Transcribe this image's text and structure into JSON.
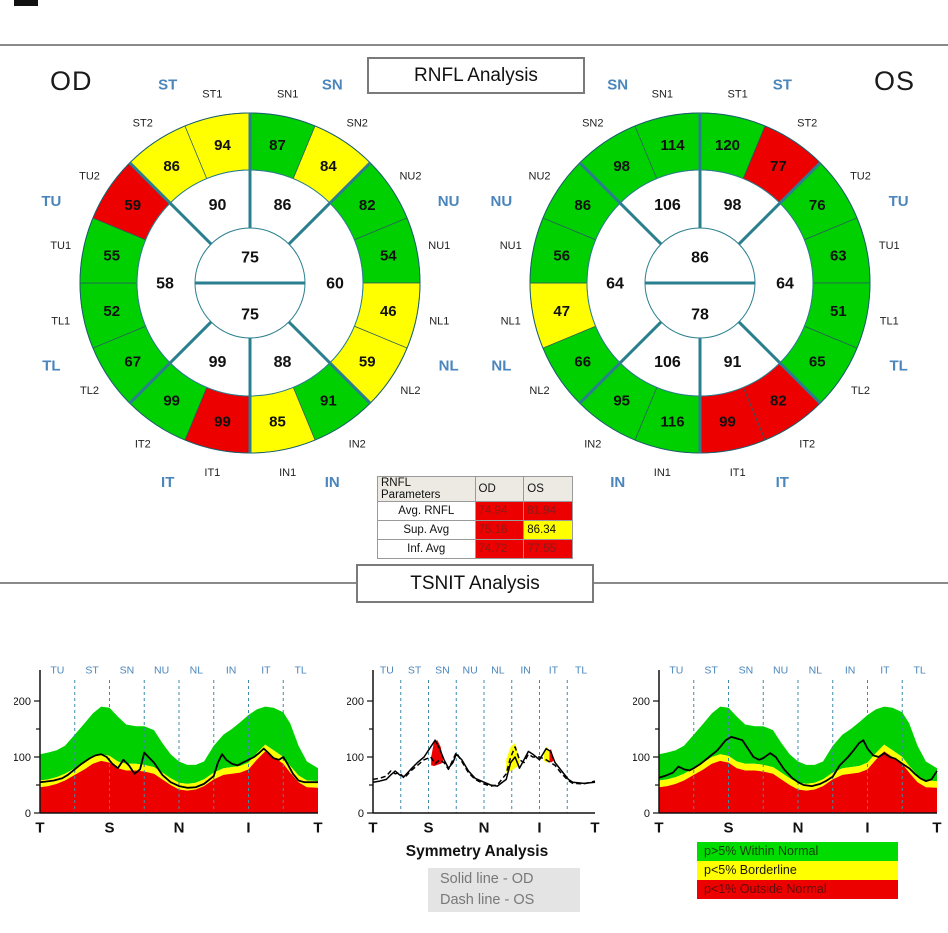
{
  "header": {
    "rnfl_title": "RNFL Analysis",
    "od_label": "OD",
    "os_label": "OS"
  },
  "tsnit_title": "TSNIT Analysis",
  "symmetry": {
    "heading": "Symmetry Analysis",
    "solid_label": "Solid line - OD",
    "dash_label": "Dash line - OS"
  },
  "legend": {
    "items": [
      {
        "label": "p>5% Within Normal",
        "bg": "#00DB00",
        "fg": "#143b05"
      },
      {
        "label": "p<5% Borderline",
        "bg": "#FFFF00",
        "fg": "#1a1a00"
      },
      {
        "label": "p<1% Outside Normal",
        "bg": "#EC0000",
        "fg": "#5f0c0c"
      }
    ]
  },
  "colors": {
    "g": "#00D000",
    "y": "#FFFF00",
    "r": "#EC0000",
    "teal": "#2A7F8E",
    "blue": "#4A86BC",
    "grid": "#3E8CA8",
    "axis": "#111111",
    "sublabel": "#222222"
  },
  "chart_data": {
    "sector_maps": [
      {
        "eye": "OD",
        "sectors": [
          [
            "SN1",
            87,
            "g"
          ],
          [
            "SN2",
            84,
            "y"
          ],
          [
            "NU2",
            82,
            "g"
          ],
          [
            "NU1",
            54,
            "g"
          ],
          [
            "NL1",
            46,
            "y"
          ],
          [
            "NL2",
            59,
            "y"
          ],
          [
            "IN2",
            91,
            "g"
          ],
          [
            "IN1",
            85,
            "y"
          ],
          [
            "IT1",
            99,
            "r"
          ],
          [
            "IT2",
            99,
            "g"
          ],
          [
            "TL2",
            67,
            "g"
          ],
          [
            "TL1",
            52,
            "g"
          ],
          [
            "TU1",
            55,
            "g"
          ],
          [
            "TU2",
            59,
            "r"
          ],
          [
            "ST2",
            86,
            "y"
          ],
          [
            "ST1",
            94,
            "y"
          ]
        ],
        "inner": [
          [
            90,
            337.5
          ],
          [
            86,
            22.5
          ],
          [
            60,
            90
          ],
          [
            88,
            157.5
          ],
          [
            99,
            202.5
          ],
          [
            58,
            270
          ]
        ],
        "center_top": 75,
        "center_bottom": 75,
        "octants": [
          [
            "SN",
            22.5
          ],
          [
            "NU",
            67.5
          ],
          [
            "NL",
            112.5
          ],
          [
            "IN",
            157.5
          ],
          [
            "IT",
            202.5
          ],
          [
            "TL",
            247.5
          ],
          [
            "TU",
            292.5
          ],
          [
            "ST",
            337.5
          ]
        ]
      },
      {
        "eye": "OS",
        "sectors": [
          [
            "ST1",
            120,
            "g"
          ],
          [
            "ST2",
            77,
            "r"
          ],
          [
            "TU2",
            76,
            "g"
          ],
          [
            "TU1",
            63,
            "g"
          ],
          [
            "TL1",
            51,
            "g"
          ],
          [
            "TL2",
            65,
            "g"
          ],
          [
            "IT2",
            82,
            "r"
          ],
          [
            "IT1",
            99,
            "r"
          ],
          [
            "IN1",
            116,
            "g"
          ],
          [
            "IN2",
            95,
            "g"
          ],
          [
            "NL2",
            66,
            "g"
          ],
          [
            "NL1",
            47,
            "y"
          ],
          [
            "NU1",
            56,
            "g"
          ],
          [
            "NU2",
            86,
            "g"
          ],
          [
            "SN2",
            98,
            "g"
          ],
          [
            "SN1",
            114,
            "g"
          ]
        ],
        "inner": [
          [
            106,
            337.5
          ],
          [
            98,
            22.5
          ],
          [
            64,
            90
          ],
          [
            91,
            157.5
          ],
          [
            106,
            202.5
          ],
          [
            64,
            270
          ]
        ],
        "center_top": 86,
        "center_bottom": 78,
        "octants": [
          [
            "ST",
            22.5
          ],
          [
            "TU",
            67.5
          ],
          [
            "TL",
            112.5
          ],
          [
            "IT",
            157.5
          ],
          [
            "IN",
            202.5
          ],
          [
            "NL",
            247.5
          ],
          [
            "NU",
            292.5
          ],
          [
            "SN",
            337.5
          ]
        ]
      }
    ],
    "parameters_table": {
      "headers": [
        "RNFL Parameters",
        "OD",
        "OS"
      ],
      "rows": [
        [
          "Avg. RNFL",
          "74.94",
          "81.94",
          "r",
          "r"
        ],
        [
          "Sup. Avg",
          "75.16",
          "86.34",
          "r",
          "y"
        ],
        [
          "Inf. Avg",
          "74.72",
          "77.55",
          "r",
          "r"
        ]
      ],
      "value_text": {
        "r": "#8B1A1A",
        "y": "#111111"
      }
    },
    "tsnit_plots": {
      "type": "area+line",
      "ylim": [
        0,
        250
      ],
      "yticks": [
        0,
        50,
        100,
        150,
        200
      ],
      "ytick_labels": [
        "0",
        "100",
        "200"
      ],
      "sections": [
        "TU",
        "ST",
        "SN",
        "NU",
        "NL",
        "IN",
        "IT",
        "TL"
      ],
      "xlabels": [
        "T",
        "S",
        "N",
        "I",
        "T"
      ],
      "bands": {
        "x": [
          0,
          0.03,
          0.06,
          0.09,
          0.125,
          0.16,
          0.19,
          0.22,
          0.25,
          0.28,
          0.31,
          0.345,
          0.375,
          0.41,
          0.44,
          0.47,
          0.5,
          0.53,
          0.56,
          0.59,
          0.625,
          0.66,
          0.69,
          0.72,
          0.75,
          0.78,
          0.81,
          0.84,
          0.875,
          0.9,
          0.93,
          0.96,
          1
        ],
        "red": [
          46,
          48,
          52,
          58,
          68,
          78,
          88,
          93,
          90,
          80,
          76,
          76,
          74,
          70,
          60,
          50,
          42,
          40,
          42,
          48,
          60,
          68,
          70,
          72,
          78,
          95,
          110,
          100,
          88,
          72,
          55,
          46,
          45
        ],
        "yellow": [
          58,
          60,
          64,
          70,
          80,
          90,
          100,
          105,
          102,
          92,
          88,
          88,
          86,
          82,
          72,
          62,
          54,
          52,
          54,
          60,
          72,
          80,
          82,
          84,
          90,
          107,
          122,
          112,
          100,
          84,
          67,
          58,
          57
        ],
        "green": [
          105,
          108,
          112,
          120,
          140,
          160,
          178,
          190,
          188,
          172,
          158,
          155,
          155,
          148,
          125,
          105,
          92,
          86,
          86,
          92,
          120,
          140,
          150,
          162,
          175,
          185,
          190,
          188,
          180,
          160,
          120,
          92,
          80
        ]
      },
      "od_line": [
        [
          0,
          55
        ],
        [
          0.02,
          56
        ],
        [
          0.05,
          58
        ],
        [
          0.08,
          62
        ],
        [
          0.1,
          68
        ],
        [
          0.125,
          78
        ],
        [
          0.15,
          88
        ],
        [
          0.18,
          98
        ],
        [
          0.2,
          103
        ],
        [
          0.22,
          105
        ],
        [
          0.24,
          100
        ],
        [
          0.26,
          88
        ],
        [
          0.28,
          80
        ],
        [
          0.3,
          95
        ],
        [
          0.32,
          85
        ],
        [
          0.34,
          70
        ],
        [
          0.36,
          78
        ],
        [
          0.375,
          108
        ],
        [
          0.39,
          100
        ],
        [
          0.41,
          90
        ],
        [
          0.44,
          68
        ],
        [
          0.47,
          55
        ],
        [
          0.5,
          48
        ],
        [
          0.53,
          45
        ],
        [
          0.56,
          46
        ],
        [
          0.59,
          52
        ],
        [
          0.61,
          60
        ],
        [
          0.625,
          66
        ],
        [
          0.64,
          90
        ],
        [
          0.655,
          105
        ],
        [
          0.67,
          95
        ],
        [
          0.69,
          88
        ],
        [
          0.71,
          85
        ],
        [
          0.73,
          90
        ],
        [
          0.75,
          95
        ],
        [
          0.77,
          100
        ],
        [
          0.79,
          108
        ],
        [
          0.805,
          115
        ],
        [
          0.82,
          108
        ],
        [
          0.84,
          98
        ],
        [
          0.86,
          95
        ],
        [
          0.875,
          100
        ],
        [
          0.89,
          88
        ],
        [
          0.91,
          70
        ],
        [
          0.93,
          58
        ],
        [
          0.95,
          55
        ],
        [
          1,
          55
        ]
      ],
      "os_line": [
        [
          0,
          63
        ],
        [
          0.02,
          66
        ],
        [
          0.05,
          72
        ],
        [
          0.07,
          83
        ],
        [
          0.09,
          78
        ],
        [
          0.11,
          76
        ],
        [
          0.125,
          80
        ],
        [
          0.15,
          88
        ],
        [
          0.18,
          100
        ],
        [
          0.21,
          112
        ],
        [
          0.24,
          130
        ],
        [
          0.26,
          136
        ],
        [
          0.28,
          133
        ],
        [
          0.3,
          130
        ],
        [
          0.32,
          115
        ],
        [
          0.34,
          100
        ],
        [
          0.36,
          95
        ],
        [
          0.375,
          98
        ],
        [
          0.4,
          107
        ],
        [
          0.42,
          100
        ],
        [
          0.45,
          78
        ],
        [
          0.48,
          62
        ],
        [
          0.5,
          55
        ],
        [
          0.52,
          50
        ],
        [
          0.55,
          48
        ],
        [
          0.58,
          52
        ],
        [
          0.6,
          57
        ],
        [
          0.625,
          65
        ],
        [
          0.65,
          85
        ],
        [
          0.68,
          100
        ],
        [
          0.7,
          112
        ],
        [
          0.72,
          125
        ],
        [
          0.735,
          130
        ],
        [
          0.75,
          115
        ],
        [
          0.77,
          103
        ],
        [
          0.79,
          100
        ],
        [
          0.81,
          107
        ],
        [
          0.83,
          100
        ],
        [
          0.85,
          97
        ],
        [
          0.875,
          88
        ],
        [
          0.9,
          80
        ],
        [
          0.92,
          70
        ],
        [
          0.94,
          62
        ],
        [
          0.96,
          57
        ],
        [
          0.98,
          60
        ],
        [
          1,
          75
        ]
      ],
      "symmetry": {
        "solid": [
          [
            0,
            55
          ],
          [
            0.03,
            57
          ],
          [
            0.06,
            60
          ],
          [
            0.08,
            68
          ],
          [
            0.1,
            75
          ],
          [
            0.12,
            68
          ],
          [
            0.14,
            65
          ],
          [
            0.17,
            78
          ],
          [
            0.2,
            90
          ],
          [
            0.23,
            100
          ],
          [
            0.26,
            118
          ],
          [
            0.28,
            130
          ],
          [
            0.3,
            115
          ],
          [
            0.32,
            95
          ],
          [
            0.34,
            80
          ],
          [
            0.36,
            90
          ],
          [
            0.375,
            105
          ],
          [
            0.4,
            95
          ],
          [
            0.43,
            75
          ],
          [
            0.46,
            62
          ],
          [
            0.5,
            55
          ],
          [
            0.53,
            50
          ],
          [
            0.56,
            48
          ],
          [
            0.6,
            60
          ],
          [
            0.62,
            90
          ],
          [
            0.64,
            100
          ],
          [
            0.66,
            80
          ],
          [
            0.68,
            95
          ],
          [
            0.7,
            110
          ],
          [
            0.72,
            105
          ],
          [
            0.75,
            95
          ],
          [
            0.78,
            115
          ],
          [
            0.8,
            110
          ],
          [
            0.82,
            90
          ],
          [
            0.85,
            75
          ],
          [
            0.88,
            60
          ],
          [
            0.9,
            55
          ],
          [
            0.95,
            53
          ],
          [
            1,
            55
          ]
        ],
        "dash": [
          [
            0,
            60
          ],
          [
            0.03,
            62
          ],
          [
            0.06,
            66
          ],
          [
            0.08,
            75
          ],
          [
            0.1,
            70
          ],
          [
            0.12,
            72
          ],
          [
            0.14,
            62
          ],
          [
            0.17,
            75
          ],
          [
            0.2,
            85
          ],
          [
            0.23,
            95
          ],
          [
            0.26,
            100
          ],
          [
            0.28,
            88
          ],
          [
            0.3,
            95
          ],
          [
            0.32,
            90
          ],
          [
            0.34,
            78
          ],
          [
            0.36,
            95
          ],
          [
            0.375,
            108
          ],
          [
            0.4,
            92
          ],
          [
            0.43,
            72
          ],
          [
            0.46,
            60
          ],
          [
            0.5,
            52
          ],
          [
            0.53,
            48
          ],
          [
            0.56,
            50
          ],
          [
            0.6,
            70
          ],
          [
            0.62,
            100
          ],
          [
            0.64,
            118
          ],
          [
            0.66,
            95
          ],
          [
            0.68,
            90
          ],
          [
            0.7,
            105
          ],
          [
            0.72,
            100
          ],
          [
            0.75,
            100
          ],
          [
            0.78,
            95
          ],
          [
            0.8,
            90
          ],
          [
            0.82,
            85
          ],
          [
            0.85,
            70
          ],
          [
            0.88,
            58
          ],
          [
            0.9,
            53
          ],
          [
            0.95,
            52
          ],
          [
            1,
            57
          ]
        ],
        "patches": [
          {
            "color": "r",
            "x": [
              0.262,
              0.275,
              0.29,
              0.305,
              0.315
            ],
            "top": [
              100,
              128,
              130,
              118,
              98
            ],
            "bottom": [
              85,
              84,
              86,
              88,
              90
            ]
          },
          {
            "color": "y",
            "x": [
              0.6,
              0.62,
              0.64,
              0.66
            ],
            "top": [
              95,
              118,
              125,
              98
            ],
            "bottom": [
              72,
              75,
              80,
              85
            ]
          },
          {
            "color": "y",
            "x": [
              0.77,
              0.782,
              0.795
            ],
            "top": [
              110,
              118,
              112
            ],
            "bottom": [
              93,
              90,
              92
            ]
          },
          {
            "color": "r",
            "x": [
              0.795,
              0.802,
              0.812
            ],
            "top": [
              112,
              114,
              100
            ],
            "bottom": [
              92,
              90,
              93
            ]
          }
        ]
      }
    }
  }
}
